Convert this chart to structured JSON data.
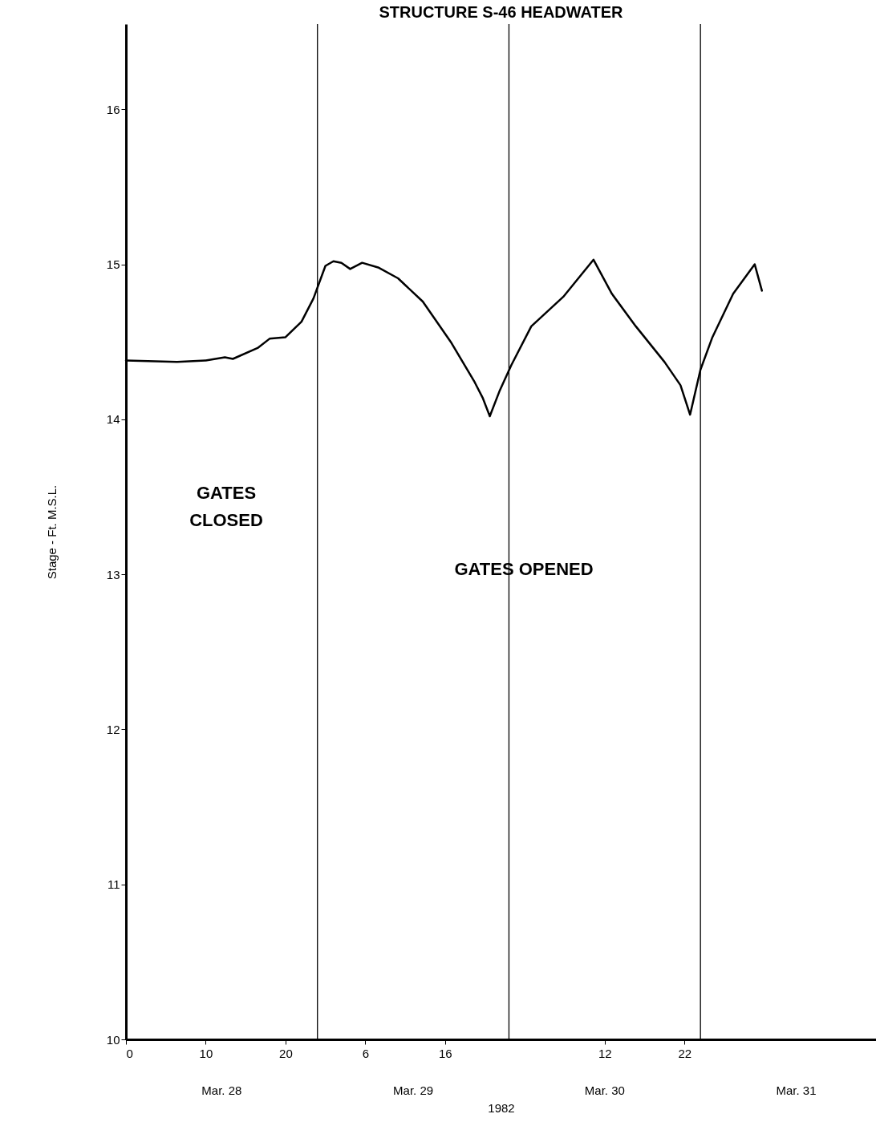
{
  "chart_data": {
    "type": "line",
    "title": "STRUCTURE S-46 HEADWATER",
    "xlabel": "1982",
    "ylabel": "Stage - Ft. M.S.L.",
    "x": [
      "1982-03-28T00:00",
      "1982-03-28T06:24",
      "1982-03-28T10:00",
      "1982-03-28T12:24",
      "1982-03-28T13:24",
      "1982-03-28T16:30",
      "1982-03-28T18:00",
      "1982-03-28T20:00",
      "1982-03-28T22:00",
      "1982-03-28T23:30",
      "1982-03-29T01:00",
      "1982-03-29T02:00",
      "1982-03-29T03:00",
      "1982-03-29T04:06",
      "1982-03-29T05:36",
      "1982-03-29T07:36",
      "1982-03-29T10:06",
      "1982-03-29T13:12",
      "1982-03-29T16:42",
      "1982-03-29T19:42",
      "1982-03-29T20:42",
      "1982-03-29T21:36",
      "1982-03-29T22:48",
      "1982-03-30T00:18",
      "1982-03-30T02:48",
      "1982-03-30T06:48",
      "1982-03-30T10:36",
      "1982-03-30T12:54",
      "1982-03-30T15:54",
      "1982-03-30T19:30",
      "1982-03-30T21:30",
      "1982-03-30T22:42",
      "1982-03-31T00:00",
      "1982-03-31T01:30",
      "1982-03-31T04:06",
      "1982-03-31T06:48",
      "1982-03-31T07:42"
    ],
    "series": [
      {
        "color": "#000000",
        "values": [
          14.38,
          14.37,
          14.38,
          14.4,
          14.39,
          14.46,
          14.52,
          14.53,
          14.63,
          14.78,
          14.99,
          15.02,
          15.01,
          14.97,
          15.01,
          14.98,
          14.91,
          14.76,
          14.5,
          14.24,
          14.14,
          14.02,
          14.18,
          14.35,
          14.6,
          14.79,
          15.03,
          14.81,
          14.6,
          14.37,
          14.22,
          14.03,
          14.32,
          14.53,
          14.81,
          15.0,
          14.83
        ]
      }
    ],
    "xlim": [
      "1982-03-28T00:00",
      "1982-03-31T22:00"
    ],
    "xticks": [
      {
        "value": "1982-03-28T00:00",
        "label": "0"
      },
      {
        "value": "1982-03-28T10:00",
        "label": "10"
      },
      {
        "value": "1982-03-28T20:00",
        "label": "20"
      },
      {
        "value": "1982-03-29T06:00",
        "label": "6"
      },
      {
        "value": "1982-03-29T16:00",
        "label": "16"
      },
      {
        "value": "1982-03-30T12:00",
        "label": "12"
      },
      {
        "value": "1982-03-30T22:00",
        "label": "22"
      }
    ],
    "ylim": [
      10,
      16.55
    ],
    "yticks": [
      10,
      11,
      12,
      13,
      14,
      15,
      16
    ],
    "ref_lines": [
      {
        "axis": "x",
        "value": "1982-03-29T00:00"
      },
      {
        "axis": "x",
        "value": "1982-03-30T00:00"
      },
      {
        "axis": "x",
        "value": "1982-03-31T00:00"
      }
    ],
    "annotations": [
      "GATES CLOSED",
      "GATES OPENED",
      "Mar. 28",
      "Mar. 29",
      "Mar. 30",
      "Mar. 31"
    ],
    "grid": false,
    "legend": false,
    "marker": "none",
    "line_style": "solid"
  }
}
